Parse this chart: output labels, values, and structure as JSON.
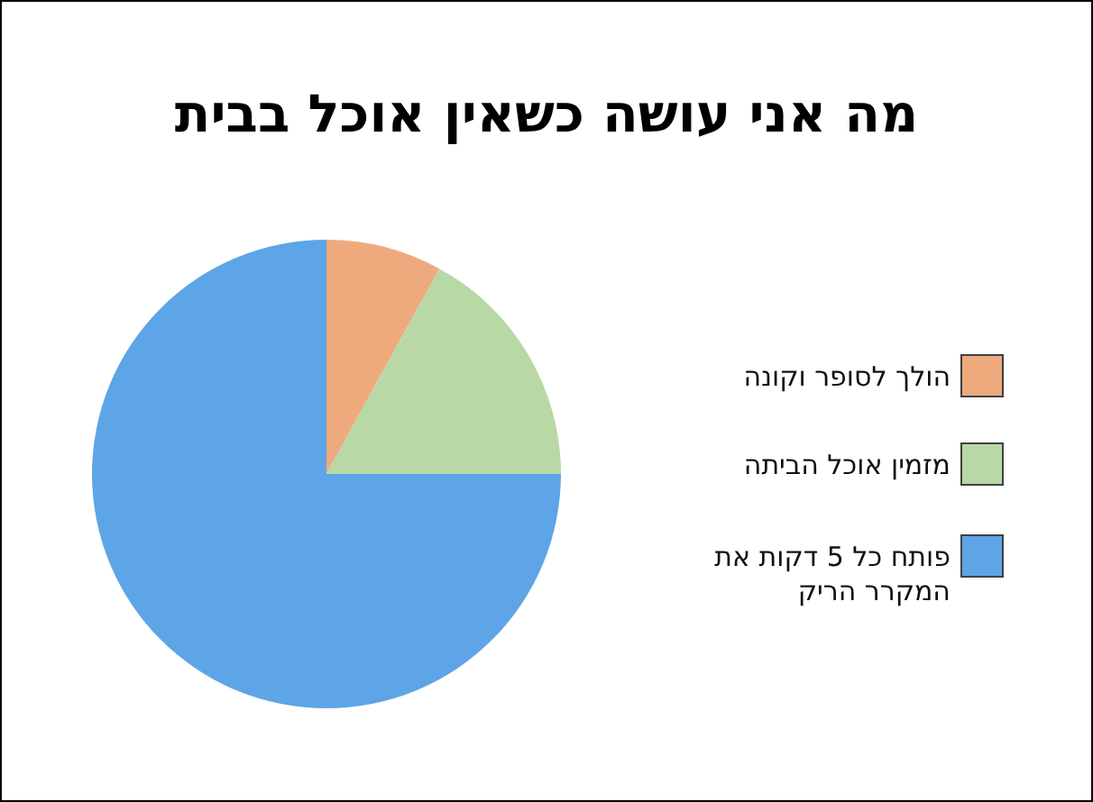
{
  "chart_data": {
    "type": "pie",
    "title": "מה אני עושה כשאין אוכל בבית",
    "categories": [
      "הולך לסופר וקונה",
      "מזמין אוכל הביתה",
      "פותח כל 5 דקות את המקרר הריק"
    ],
    "values": [
      8,
      17,
      75
    ],
    "colors": [
      "#eeaa7d",
      "#b8d8a6",
      "#5da5e6"
    ],
    "legend": "right"
  }
}
